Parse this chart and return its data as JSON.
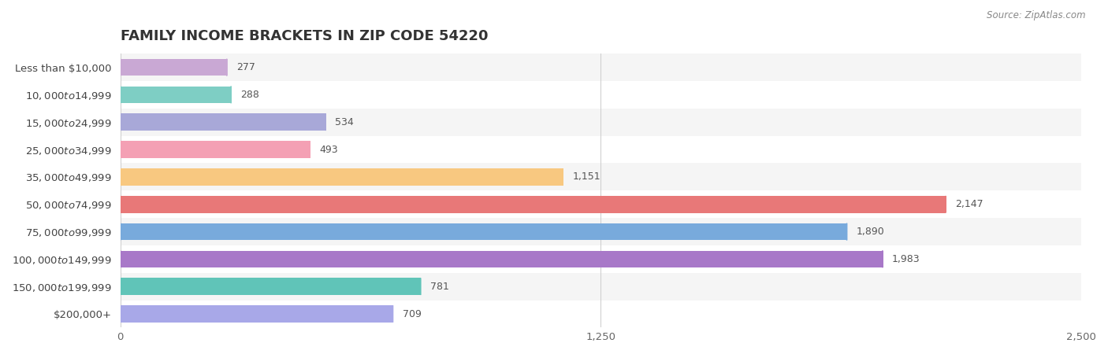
{
  "title": "FAMILY INCOME BRACKETS IN ZIP CODE 54220",
  "source": "Source: ZipAtlas.com",
  "categories": [
    "Less than $10,000",
    "$10,000 to $14,999",
    "$15,000 to $24,999",
    "$25,000 to $34,999",
    "$35,000 to $49,999",
    "$50,000 to $74,999",
    "$75,000 to $99,999",
    "$100,000 to $149,999",
    "$150,000 to $199,999",
    "$200,000+"
  ],
  "values": [
    277,
    288,
    534,
    493,
    1151,
    2147,
    1890,
    1983,
    781,
    709
  ],
  "bar_colors": [
    "#c9a8d4",
    "#7ecec4",
    "#a8a8d8",
    "#f4a0b4",
    "#f8c880",
    "#e87878",
    "#78aadc",
    "#a878c8",
    "#60c4b8",
    "#a8a8e8"
  ],
  "bg_color": "#ffffff",
  "row_bg_colors": [
    "#f5f5f5",
    "#ffffff"
  ],
  "xlim": [
    0,
    2500
  ],
  "xticks": [
    0,
    1250,
    2500
  ],
  "title_fontsize": 13,
  "label_fontsize": 9.5,
  "value_fontsize": 9,
  "bar_height": 0.62
}
